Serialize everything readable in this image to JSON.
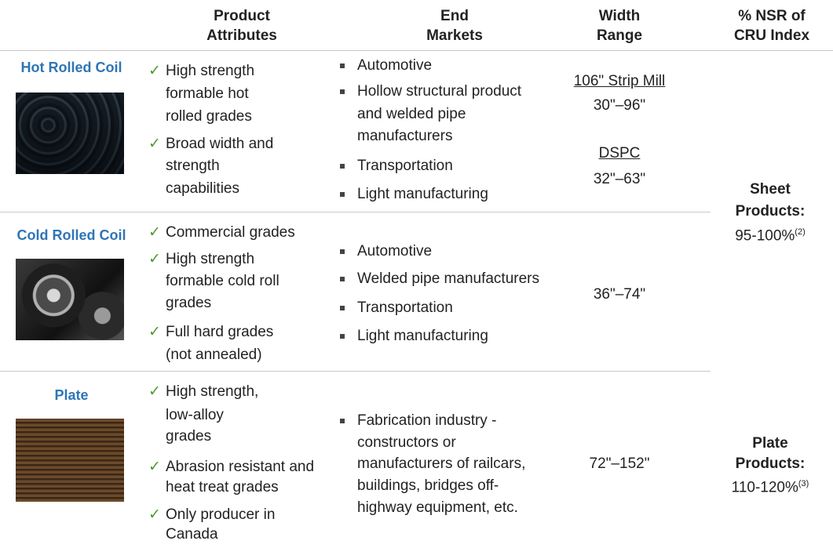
{
  "header": {
    "columns": [
      [
        "Product",
        "Attributes"
      ],
      [
        "End",
        "Markets"
      ],
      [
        "Width",
        "Range"
      ],
      [
        "% NSR of",
        "CRU Index"
      ]
    ]
  },
  "rows": [
    {
      "name": "Hot Rolled Coil",
      "attributes": [
        [
          "High strength",
          "formable hot",
          "rolled grades"
        ],
        [
          "Broad width and",
          "strength",
          "capabilities"
        ]
      ],
      "markets": [
        [
          "Automotive"
        ],
        [
          "Hollow structural product",
          "and welded  pipe",
          "manufacturers"
        ],
        [
          "Transportation"
        ],
        [
          "Light manufacturing"
        ]
      ],
      "width": [
        {
          "mill": "106\" Strip Mill",
          "range": "30\"–96\""
        },
        {
          "mill": "DSPC",
          "range": "32\"–63\""
        }
      ]
    },
    {
      "name": "Cold Rolled Coil",
      "attributes": [
        [
          "Commercial grades"
        ],
        [
          "High strength",
          "formable cold roll",
          "grades"
        ],
        [
          "Full hard grades",
          "(not annealed)"
        ]
      ],
      "markets": [
        [
          "Automotive"
        ],
        [
          "Welded pipe manufacturers"
        ],
        [
          "Transportation"
        ],
        [
          "Light manufacturing"
        ]
      ],
      "width": [
        {
          "range": "36\"–74\""
        }
      ]
    },
    {
      "name": "Plate",
      "attributes": [
        [
          "High strength,",
          "low-alloy",
          "grades"
        ],
        [
          "Abrasion resistant and",
          "heat treat grades"
        ],
        [
          "Only producer in",
          "Canada"
        ]
      ],
      "markets": [
        [
          "Fabrication industry -",
          "constructors or",
          "manufacturers of railcars,",
          "buildings,  bridges off-",
          "highway equipment, etc."
        ]
      ],
      "width": [
        {
          "range": "72\"–152\""
        }
      ]
    }
  ],
  "nsr": [
    {
      "lines": [
        "Sheet",
        "Products:"
      ],
      "value": "95-100%",
      "note": "(2)"
    },
    {
      "lines": [
        "Plate",
        "Products:"
      ],
      "value": "110-120%",
      "note": "(3)"
    }
  ]
}
